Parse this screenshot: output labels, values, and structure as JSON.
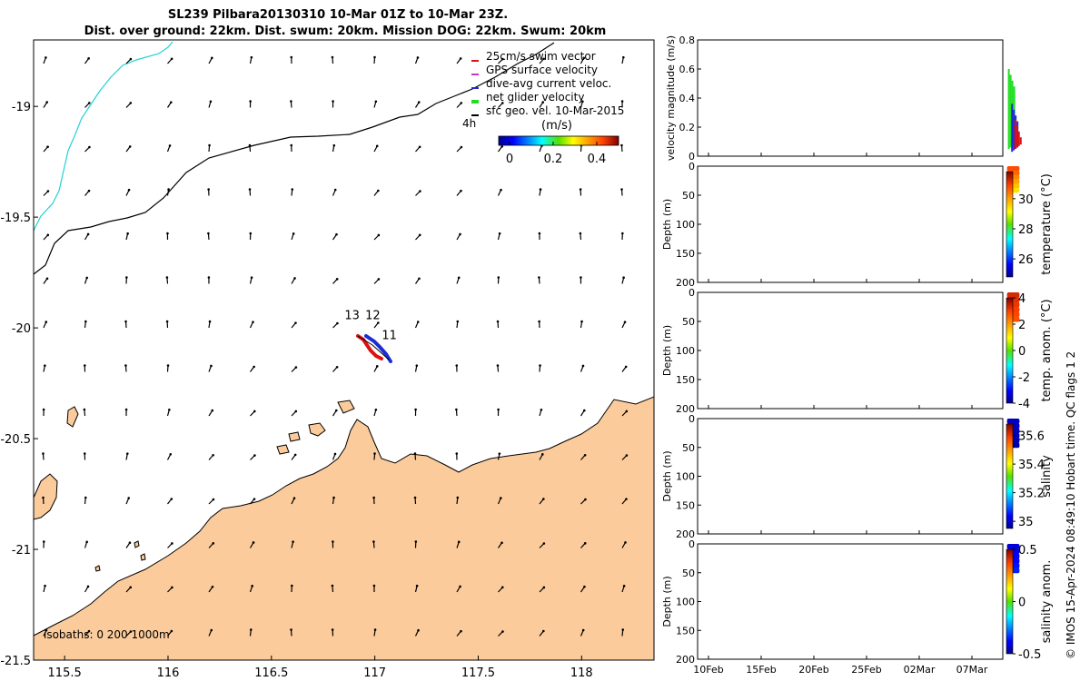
{
  "title_line1": "SL239 Pilbara20130310 10-Mar 01Z to 10-Mar 23Z.",
  "title_line2": "Dist. over ground: 22km. Dist. swum: 20km. Mission DOG: 22km. Swum: 20km",
  "footer_text": "© IMOS 15-Apr-2024 08:49:10 Hobart time. QC flags 1  2",
  "colors": {
    "land": "#fbcb9b",
    "coast_line": "#000000",
    "isobath_200": "#000000",
    "isobath_1000": "#22d3d3",
    "swim_vector": "#dd1111",
    "gps_velocity": "#cc33cc",
    "dive_avg": "#1b2bd6",
    "net_glider": "#22dd22",
    "sfc_geo": "#000000"
  },
  "chart_data": [
    {
      "type": "map",
      "name": "track-map",
      "xlim": [
        115.35,
        118.35
      ],
      "ylim": [
        -21.5,
        -18.7
      ],
      "xticks": [
        "115.5",
        "116",
        "116.5",
        "117",
        "117.5",
        "118"
      ],
      "yticks": [
        "-19",
        "-19.5",
        "-20",
        "-20.5",
        "-21",
        "-21.5"
      ],
      "legend": [
        {
          "label": "25cm/s swim vector",
          "color_key": "swim_vector"
        },
        {
          "label": "GPS surface velocity",
          "color_key": "gps_velocity"
        },
        {
          "label": "dive-avg current veloc.",
          "color_key": "dive_avg"
        },
        {
          "label": "net glider velocity",
          "color_key": "net_glider"
        },
        {
          "label": "sfc geo. vel. 10-Mar-2015",
          "color_key": "sfc_geo"
        }
      ],
      "time_label": "4h",
      "colorbar": {
        "label": "(m/s)",
        "ticks": [
          "0",
          "0.2",
          "0.4"
        ],
        "range": [
          -0.05,
          0.5
        ]
      },
      "track_labels": [
        {
          "text": "13",
          "lon": 116.89,
          "lat": -19.96
        },
        {
          "text": "12",
          "lon": 116.99,
          "lat": -19.96
        },
        {
          "text": "11",
          "lon": 117.07,
          "lat": -20.05
        }
      ],
      "track": [
        [
          116.93,
          -20.04
        ],
        [
          117.0,
          -20.09
        ],
        [
          117.06,
          -20.17
        ]
      ],
      "isobaths_label": "isobaths: 0   200  1000m"
    },
    {
      "type": "line",
      "name": "velocity-magnitude",
      "ylabel": "velocity magnitude (m/s)",
      "ylim": [
        0,
        0.8
      ],
      "yticks": [
        "0",
        "0.2",
        "0.4",
        "0.6",
        "0.8"
      ],
      "series": [
        {
          "name": "net glider",
          "color_key": "net_glider",
          "x_day": 28.5,
          "range": [
            0.05,
            0.6
          ]
        },
        {
          "name": "dive-avg",
          "color_key": "dive_avg",
          "x_day": 28.55,
          "range": [
            0.03,
            0.36
          ]
        },
        {
          "name": "swim",
          "color_key": "swim_vector",
          "x_day": 28.6,
          "range": [
            0.05,
            0.25
          ]
        }
      ]
    },
    {
      "type": "heatmap",
      "name": "temperature",
      "ylabel": "Depth (m)",
      "cbar_label": "temperature (°C)",
      "ylim": [
        200,
        0
      ],
      "cticks": [
        "26",
        "28",
        "30"
      ],
      "crange": [
        24.8,
        31.8
      ],
      "patch": {
        "x_day": [
          28.5,
          29.0
        ],
        "depth": [
          0,
          45
        ],
        "value_top": 30.8,
        "value_bottom": 29.4
      }
    },
    {
      "type": "heatmap",
      "name": "temp-anomaly",
      "ylabel": "Depth (m)",
      "cbar_label": "temp. anom. (°C)",
      "ylim": [
        200,
        0
      ],
      "cticks": [
        "-4",
        "-2",
        "0",
        "2",
        "4"
      ],
      "crange": [
        -4,
        4
      ],
      "patch": {
        "x_day": [
          28.5,
          29.0
        ],
        "depth": [
          0,
          50
        ],
        "value_top": 3.3,
        "value_bottom": 2.8
      }
    },
    {
      "type": "heatmap",
      "name": "salinity",
      "ylabel": "Depth (m)",
      "cbar_label": "salinity",
      "ylim": [
        200,
        0
      ],
      "cticks": [
        "35",
        "35.2",
        "35.4",
        "35.6"
      ],
      "crange": [
        34.95,
        35.68
      ],
      "patch": {
        "x_day": [
          28.5,
          29.0
        ],
        "depth": [
          0,
          50
        ],
        "value_top": 34.99,
        "value_bottom": 34.97
      }
    },
    {
      "type": "heatmap",
      "name": "salinity-anomaly",
      "ylabel": "Depth (m)",
      "cbar_label": "salinity anom.",
      "ylim": [
        200,
        0
      ],
      "cticks": [
        "-0.5",
        "0",
        "0.5"
      ],
      "crange": [
        -0.5,
        0.5
      ],
      "patch": {
        "x_day": [
          28.5,
          29.0
        ],
        "depth": [
          0,
          50
        ],
        "value_top": -0.42,
        "value_bottom": -0.35
      },
      "xticks": [
        "10Feb",
        "15Feb",
        "20Feb",
        "25Feb",
        "02Mar",
        "07Mar"
      ],
      "xtick_days": [
        0,
        5,
        10,
        15,
        20,
        25
      ]
    }
  ]
}
